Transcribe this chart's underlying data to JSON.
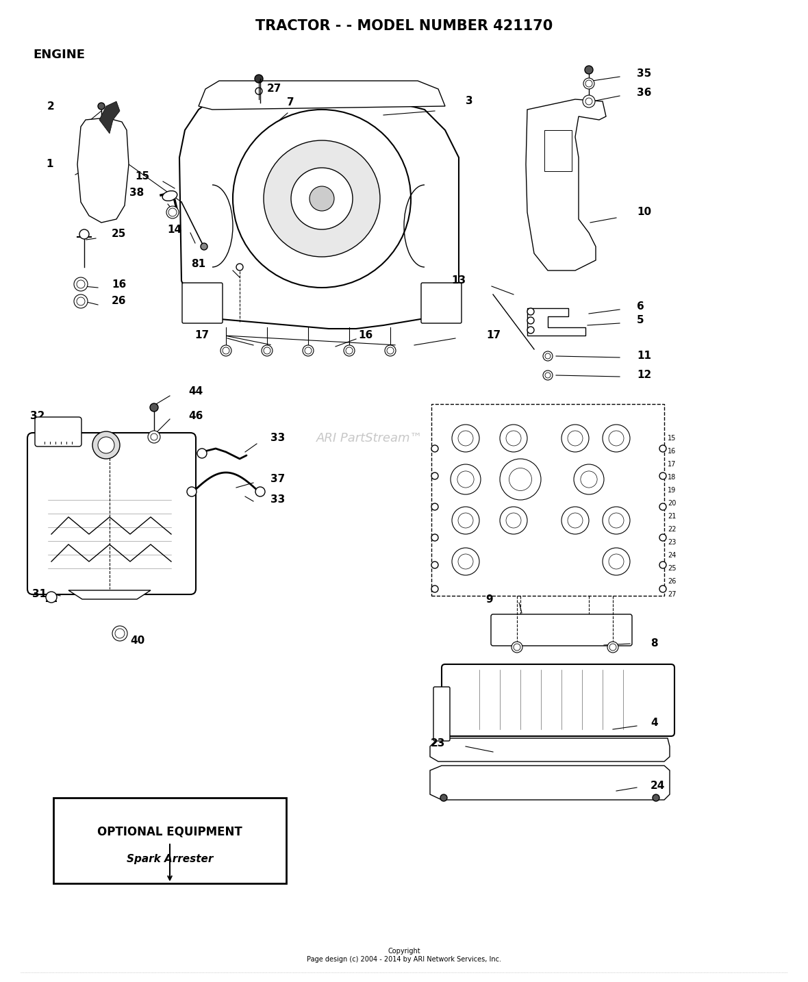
{
  "title": "TRACTOR - - MODEL NUMBER 421170",
  "section_label": "ENGINE",
  "watermark": "ARI PartStream™",
  "copyright": "Copyright\nPage design (c) 2004 - 2014 by ARI Network Services, Inc.",
  "bg_color": "#ffffff",
  "title_fontsize": 15,
  "section_fontsize": 13,
  "label_fontsize": 11,
  "watermark_color": "#c8c8c8",
  "line_color": "#000000"
}
